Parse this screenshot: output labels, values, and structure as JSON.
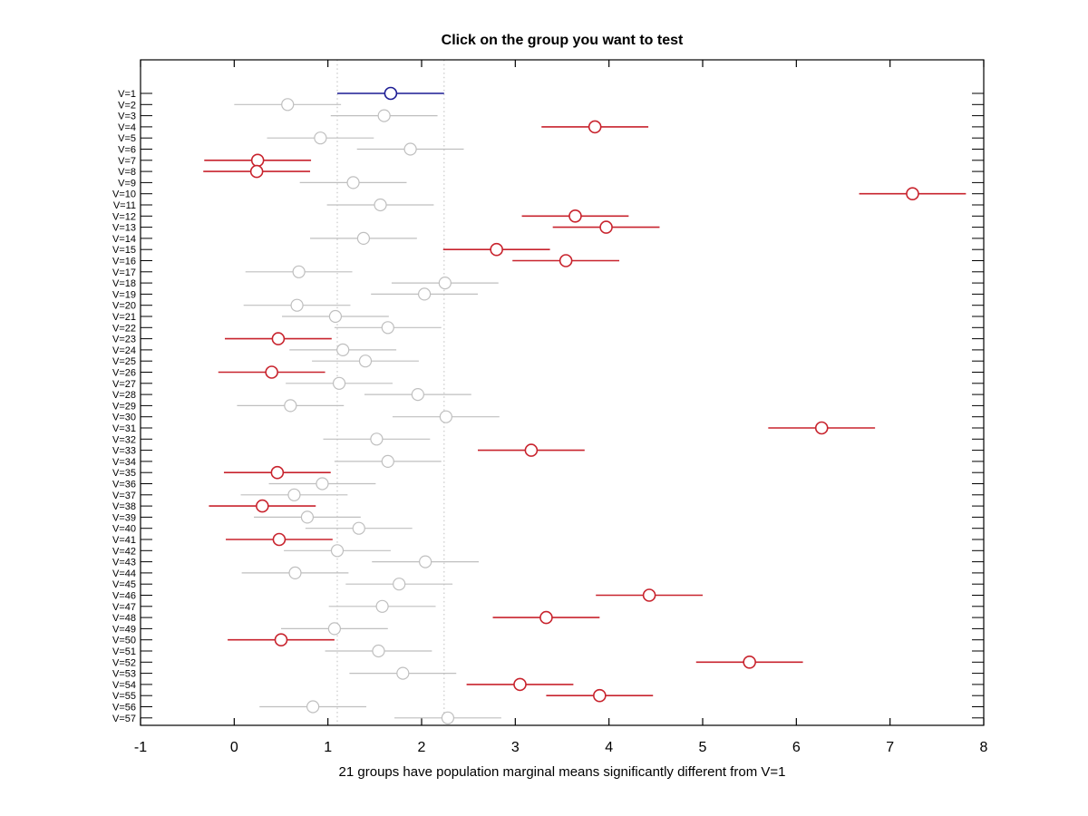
{
  "chart_data": {
    "type": "scatter",
    "subtype": "multcompare-horizontal-intervals",
    "title": "Click on the group you want to test",
    "xlabel": "21 groups have population marginal means significantly different from V=1",
    "xlim": [
      -1,
      8
    ],
    "x_ticks": [
      "-1",
      "0",
      "1",
      "2",
      "3",
      "4",
      "5",
      "6",
      "7",
      "8"
    ],
    "grid": false,
    "reference_lines": {
      "values": [
        1.1,
        2.24
      ],
      "style": "dotted",
      "color": "#c9c9c9"
    },
    "colors": {
      "selected": "#1c1c94",
      "significant": "#c8232d",
      "nonsignificant": "#bfbfbf",
      "axis": "#000000",
      "marker_fill": "#ffffff"
    },
    "groups": [
      {
        "label": "V=1",
        "center": 1.67,
        "lo": 1.1,
        "hi": 2.24,
        "status": "selected"
      },
      {
        "label": "V=2",
        "center": 0.57,
        "lo": 0.0,
        "hi": 1.14,
        "status": "ns"
      },
      {
        "label": "V=3",
        "center": 1.6,
        "lo": 1.03,
        "hi": 2.17,
        "status": "ns"
      },
      {
        "label": "V=4",
        "center": 3.85,
        "lo": 3.28,
        "hi": 4.42,
        "status": "significant"
      },
      {
        "label": "V=5",
        "center": 0.92,
        "lo": 0.35,
        "hi": 1.49,
        "status": "ns"
      },
      {
        "label": "V=6",
        "center": 1.88,
        "lo": 1.31,
        "hi": 2.45,
        "status": "ns"
      },
      {
        "label": "V=7",
        "center": 0.25,
        "lo": -0.32,
        "hi": 0.82,
        "status": "significant"
      },
      {
        "label": "V=8",
        "center": 0.24,
        "lo": -0.33,
        "hi": 0.81,
        "status": "significant"
      },
      {
        "label": "V=9",
        "center": 1.27,
        "lo": 0.7,
        "hi": 1.84,
        "status": "ns"
      },
      {
        "label": "V=10",
        "center": 7.24,
        "lo": 6.67,
        "hi": 7.81,
        "status": "significant"
      },
      {
        "label": "V=11",
        "center": 1.56,
        "lo": 0.99,
        "hi": 2.13,
        "status": "ns"
      },
      {
        "label": "V=12",
        "center": 3.64,
        "lo": 3.07,
        "hi": 4.21,
        "status": "significant"
      },
      {
        "label": "V=13",
        "center": 3.97,
        "lo": 3.4,
        "hi": 4.54,
        "status": "significant"
      },
      {
        "label": "V=14",
        "center": 1.38,
        "lo": 0.81,
        "hi": 1.95,
        "status": "ns"
      },
      {
        "label": "V=15",
        "center": 2.8,
        "lo": 2.23,
        "hi": 3.37,
        "status": "significant"
      },
      {
        "label": "V=16",
        "center": 3.54,
        "lo": 2.97,
        "hi": 4.11,
        "status": "significant"
      },
      {
        "label": "V=17",
        "center": 0.69,
        "lo": 0.12,
        "hi": 1.26,
        "status": "ns"
      },
      {
        "label": "V=18",
        "center": 2.25,
        "lo": 1.68,
        "hi": 2.82,
        "status": "ns"
      },
      {
        "label": "V=19",
        "center": 2.03,
        "lo": 1.46,
        "hi": 2.6,
        "status": "ns"
      },
      {
        "label": "V=20",
        "center": 0.67,
        "lo": 0.1,
        "hi": 1.24,
        "status": "ns"
      },
      {
        "label": "V=21",
        "center": 1.08,
        "lo": 0.51,
        "hi": 1.65,
        "status": "ns"
      },
      {
        "label": "V=22",
        "center": 1.64,
        "lo": 1.07,
        "hi": 2.21,
        "status": "ns"
      },
      {
        "label": "V=23",
        "center": 0.47,
        "lo": -0.1,
        "hi": 1.04,
        "status": "significant"
      },
      {
        "label": "V=24",
        "center": 1.16,
        "lo": 0.59,
        "hi": 1.73,
        "status": "ns"
      },
      {
        "label": "V=25",
        "center": 1.4,
        "lo": 0.83,
        "hi": 1.97,
        "status": "ns"
      },
      {
        "label": "V=26",
        "center": 0.4,
        "lo": -0.17,
        "hi": 0.97,
        "status": "significant"
      },
      {
        "label": "V=27",
        "center": 1.12,
        "lo": 0.55,
        "hi": 1.69,
        "status": "ns"
      },
      {
        "label": "V=28",
        "center": 1.96,
        "lo": 1.39,
        "hi": 2.53,
        "status": "ns"
      },
      {
        "label": "V=29",
        "center": 0.6,
        "lo": 0.03,
        "hi": 1.17,
        "status": "ns"
      },
      {
        "label": "V=30",
        "center": 2.26,
        "lo": 1.69,
        "hi": 2.83,
        "status": "ns"
      },
      {
        "label": "V=31",
        "center": 6.27,
        "lo": 5.7,
        "hi": 6.84,
        "status": "significant"
      },
      {
        "label": "V=32",
        "center": 1.52,
        "lo": 0.95,
        "hi": 2.09,
        "status": "ns"
      },
      {
        "label": "V=33",
        "center": 3.17,
        "lo": 2.6,
        "hi": 3.74,
        "status": "significant"
      },
      {
        "label": "V=34",
        "center": 1.64,
        "lo": 1.07,
        "hi": 2.21,
        "status": "ns"
      },
      {
        "label": "V=35",
        "center": 0.46,
        "lo": -0.11,
        "hi": 1.03,
        "status": "significant"
      },
      {
        "label": "V=36",
        "center": 0.94,
        "lo": 0.37,
        "hi": 1.51,
        "status": "ns"
      },
      {
        "label": "V=37",
        "center": 0.64,
        "lo": 0.07,
        "hi": 1.21,
        "status": "ns"
      },
      {
        "label": "V=38",
        "center": 0.3,
        "lo": -0.27,
        "hi": 0.87,
        "status": "significant"
      },
      {
        "label": "V=39",
        "center": 0.78,
        "lo": 0.21,
        "hi": 1.35,
        "status": "ns"
      },
      {
        "label": "V=40",
        "center": 1.33,
        "lo": 0.76,
        "hi": 1.9,
        "status": "ns"
      },
      {
        "label": "V=41",
        "center": 0.48,
        "lo": -0.09,
        "hi": 1.05,
        "status": "significant"
      },
      {
        "label": "V=42",
        "center": 1.1,
        "lo": 0.53,
        "hi": 1.67,
        "status": "ns"
      },
      {
        "label": "V=43",
        "center": 2.04,
        "lo": 1.47,
        "hi": 2.61,
        "status": "ns"
      },
      {
        "label": "V=44",
        "center": 0.65,
        "lo": 0.08,
        "hi": 1.22,
        "status": "ns"
      },
      {
        "label": "V=45",
        "center": 1.76,
        "lo": 1.19,
        "hi": 2.33,
        "status": "ns"
      },
      {
        "label": "V=46",
        "center": 4.43,
        "lo": 3.86,
        "hi": 5.0,
        "status": "significant"
      },
      {
        "label": "V=47",
        "center": 1.58,
        "lo": 1.01,
        "hi": 2.15,
        "status": "ns"
      },
      {
        "label": "V=48",
        "center": 3.33,
        "lo": 2.76,
        "hi": 3.9,
        "status": "significant"
      },
      {
        "label": "V=49",
        "center": 1.07,
        "lo": 0.5,
        "hi": 1.64,
        "status": "ns"
      },
      {
        "label": "V=50",
        "center": 0.5,
        "lo": -0.07,
        "hi": 1.07,
        "status": "significant"
      },
      {
        "label": "V=51",
        "center": 1.54,
        "lo": 0.97,
        "hi": 2.11,
        "status": "ns"
      },
      {
        "label": "V=52",
        "center": 5.5,
        "lo": 4.93,
        "hi": 6.07,
        "status": "significant"
      },
      {
        "label": "V=53",
        "center": 1.8,
        "lo": 1.23,
        "hi": 2.37,
        "status": "ns"
      },
      {
        "label": "V=54",
        "center": 3.05,
        "lo": 2.48,
        "hi": 3.62,
        "status": "significant"
      },
      {
        "label": "V=55",
        "center": 3.9,
        "lo": 3.33,
        "hi": 4.47,
        "status": "significant"
      },
      {
        "label": "V=56",
        "center": 0.84,
        "lo": 0.27,
        "hi": 1.41,
        "status": "ns"
      },
      {
        "label": "V=57",
        "center": 2.28,
        "lo": 1.71,
        "hi": 2.85,
        "status": "ns"
      }
    ]
  }
}
